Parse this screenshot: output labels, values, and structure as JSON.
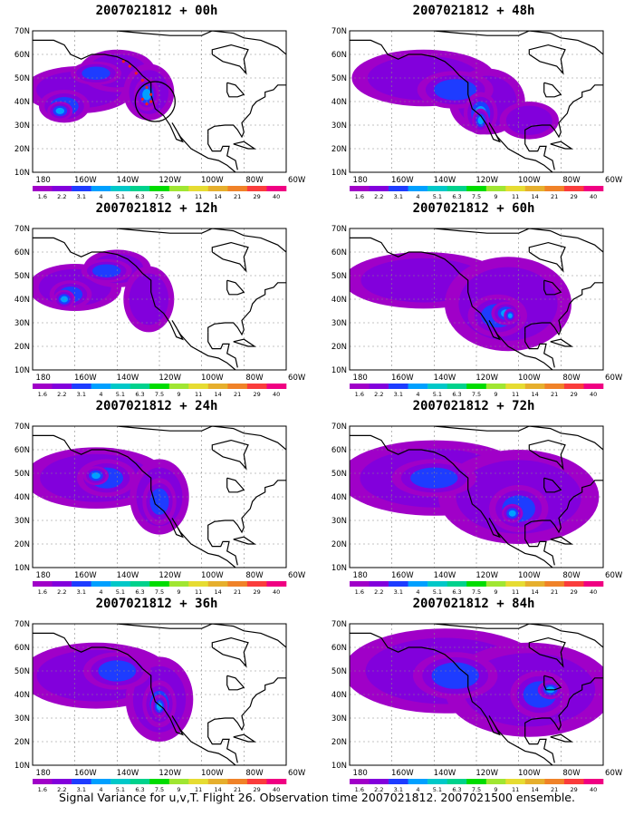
{
  "colors": {
    "bands": [
      "#a000c8",
      "#8200dc",
      "#1e3cff",
      "#00a0ff",
      "#00c8c8",
      "#00d28c",
      "#00dc00",
      "#a0e632",
      "#e6dc32",
      "#e6af2d",
      "#f08228",
      "#fa3c3c",
      "#f00082"
    ]
  },
  "colorbar_labels": [
    "1.6",
    "2.2",
    "3.1",
    "4",
    "5.1",
    "6.3",
    "7.5",
    "9",
    "11",
    "14",
    "21",
    "29",
    "40"
  ],
  "lat_labels": [
    "70N",
    "60N",
    "50N",
    "40N",
    "30N",
    "20N",
    "10N"
  ],
  "lon_labels": [
    "180",
    "160W",
    "140W",
    "120W",
    "100W",
    "80W",
    "60W"
  ],
  "panels": [
    {
      "title": "2007021812 + 00h"
    },
    {
      "title": "2007021812 + 48h"
    },
    {
      "title": "2007021812 + 12h"
    },
    {
      "title": "2007021812 + 60h"
    },
    {
      "title": "2007021812 + 24h"
    },
    {
      "title": "2007021812 + 72h"
    },
    {
      "title": "2007021812 + 36h"
    },
    {
      "title": "2007021812 + 84h"
    }
  ],
  "footer": "Signal Variance for u,v,T. Flight 26. Observation time 2007021812. 2007021500 ensemble."
}
